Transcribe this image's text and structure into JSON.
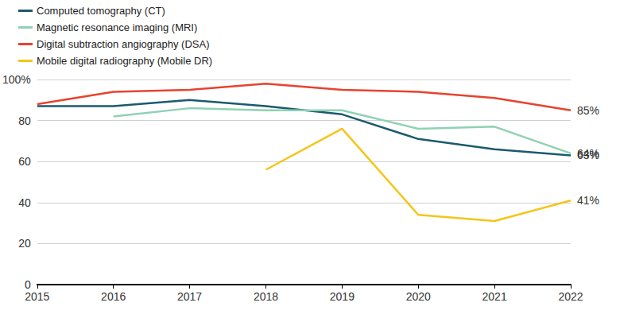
{
  "chart_data": {
    "type": "line",
    "categories": [
      "2015",
      "2016",
      "2017",
      "2018",
      "2019",
      "2020",
      "2021",
      "2022"
    ],
    "series": [
      {
        "name": "Computed tomography (CT)",
        "color": "#1b5a6e",
        "values": [
          87,
          87,
          90,
          87,
          83,
          71,
          66,
          63
        ],
        "value_labels": [
          null,
          null,
          null,
          null,
          null,
          null,
          null,
          "63%"
        ]
      },
      {
        "name": "Magnetic resonance imaging (MRI)",
        "color": "#8fd1b4",
        "values": [
          null,
          82,
          86,
          85,
          85,
          76,
          77,
          64
        ],
        "value_labels": [
          null,
          null,
          null,
          null,
          null,
          null,
          null,
          "64%"
        ]
      },
      {
        "name": "Digital subtraction angiography (DSA)",
        "color": "#e8432e",
        "values": [
          88,
          94,
          95,
          98,
          95,
          94,
          91,
          85
        ],
        "value_labels": [
          null,
          null,
          null,
          null,
          null,
          null,
          null,
          "85%"
        ]
      },
      {
        "name": "Mobile digital radiography (Mobile DR)",
        "color": "#f5c518",
        "values": [
          null,
          null,
          null,
          56,
          76,
          34,
          31,
          41
        ],
        "value_labels": [
          null,
          null,
          null,
          null,
          null,
          null,
          null,
          "41%"
        ]
      }
    ],
    "ylim": [
      0,
      100
    ],
    "yticks": [
      0,
      20,
      40,
      60,
      80,
      {
        "value": 100,
        "label": "100%"
      }
    ],
    "grid": true,
    "legend": "top-left"
  }
}
